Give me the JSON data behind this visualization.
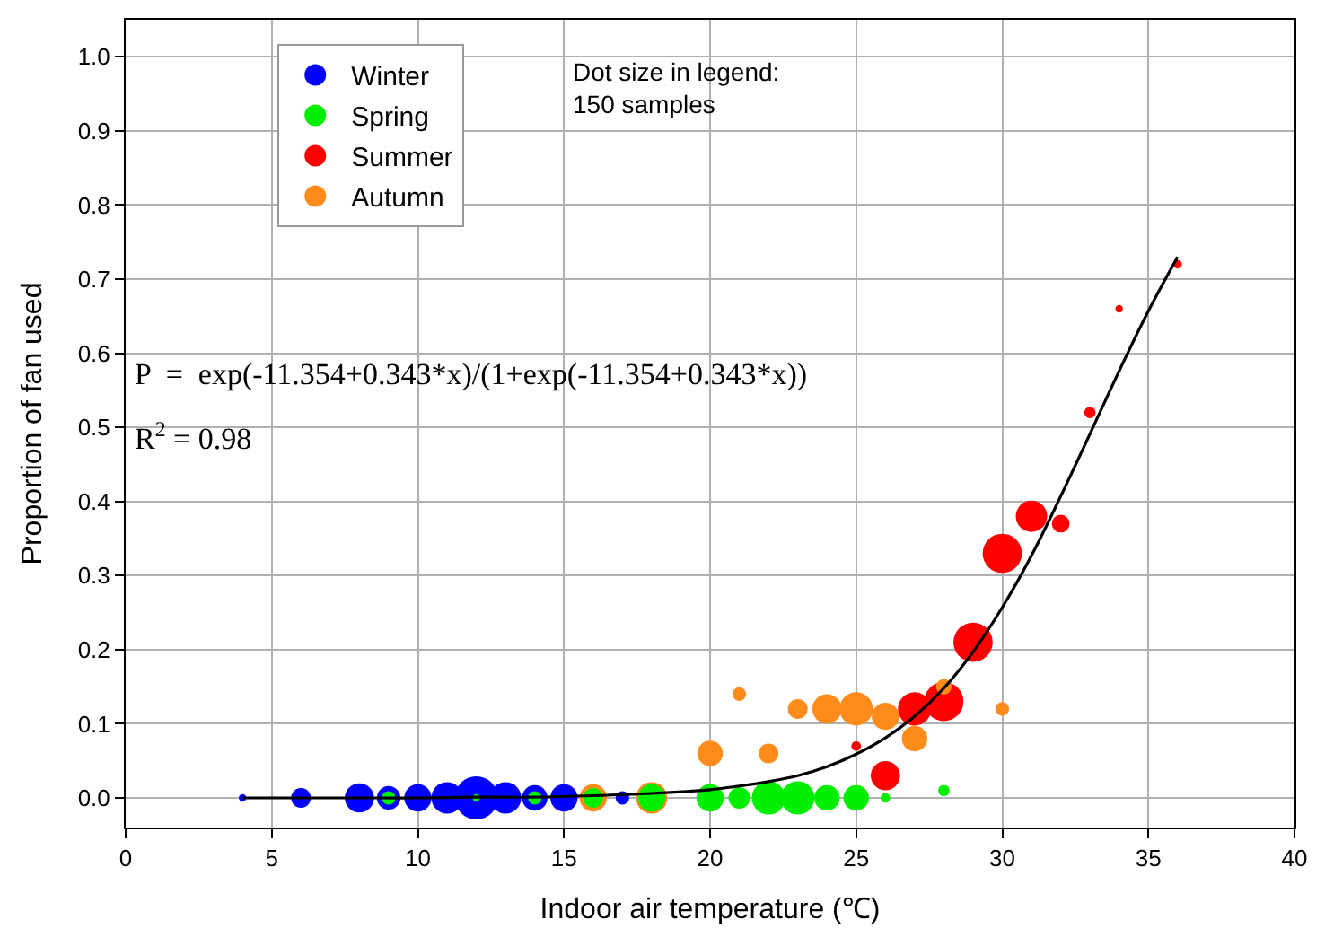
{
  "chart_data": {
    "type": "bubble",
    "xlabel": "Indoor air temperature (℃)",
    "ylabel": "Proportion of fan used",
    "xlim": [
      0,
      40
    ],
    "xticks": [
      0,
      5,
      10,
      15,
      20,
      25,
      30,
      35,
      40
    ],
    "ylim": [
      -0.04,
      1.05
    ],
    "yticks": [
      {
        "value": 0,
        "label": "0.0"
      },
      {
        "value": 0.1,
        "label": "0.1"
      },
      {
        "value": 0.2,
        "label": "0.2"
      },
      {
        "value": 0.3,
        "label": "0.3"
      },
      {
        "value": 0.4,
        "label": "0.4"
      },
      {
        "value": 0.5,
        "label": "0.5"
      },
      {
        "value": 0.6,
        "label": "0.6"
      },
      {
        "value": 0.7,
        "label": "0.7"
      },
      {
        "value": 0.8,
        "label": "0.8"
      },
      {
        "value": 0.9,
        "label": "0.9"
      },
      {
        "value": 1.0,
        "label": "1.0"
      }
    ],
    "grid": true,
    "legend": "top left",
    "marker": "circle",
    "series": [
      {
        "name": "Winter",
        "color": "#0000ff",
        "x": [
          4,
          6,
          8,
          9,
          10,
          11,
          12,
          13,
          14,
          15,
          17
        ],
        "values": [
          0,
          0,
          0,
          0,
          0,
          0,
          0,
          0,
          0,
          0,
          0
        ],
        "sizes": [
          0.03,
          0.21,
          0.46,
          0.3,
          0.4,
          0.53,
          1,
          0.53,
          0.35,
          0.4,
          0.1
        ]
      },
      {
        "name": "Spring",
        "color": "#00ee00",
        "x": [
          9,
          12,
          14,
          16,
          18,
          20,
          21,
          22,
          23,
          24,
          25,
          26,
          28
        ],
        "values": [
          0,
          0,
          0,
          0,
          0,
          0,
          0,
          0,
          0,
          0,
          0,
          0,
          0.01
        ],
        "sizes": [
          0.1,
          0.03,
          0.1,
          0.21,
          0.4,
          0.4,
          0.25,
          0.6,
          0.6,
          0.35,
          0.35,
          0.05,
          0.07
        ]
      },
      {
        "name": "Summer",
        "color": "#ff0000",
        "x": [
          25,
          26,
          27,
          28,
          29,
          30,
          31,
          32,
          33,
          34,
          36
        ],
        "values": [
          0.07,
          0.03,
          0.12,
          0.13,
          0.21,
          0.33,
          0.38,
          0.37,
          0.52,
          0.66,
          0.72
        ],
        "sizes": [
          0.05,
          0.46,
          0.6,
          0.83,
          0.83,
          0.83,
          0.53,
          0.17,
          0.07,
          0.03,
          0.04
        ]
      },
      {
        "name": "Autumn",
        "color": "#ff8c1a",
        "x": [
          16,
          18,
          20,
          21,
          22,
          23,
          24,
          25,
          26,
          27,
          28,
          30
        ],
        "values": [
          0,
          0,
          0.06,
          0.14,
          0.06,
          0.12,
          0.12,
          0.12,
          0.11,
          0.08,
          0.15,
          0.12
        ],
        "sizes": [
          0.4,
          0.53,
          0.35,
          0.1,
          0.21,
          0.21,
          0.46,
          0.6,
          0.4,
          0.35,
          0.13,
          0.1
        ]
      },
      {
        "type": "line",
        "color": "#000000",
        "marker": "none",
        "x": [
          4,
          6,
          8,
          10,
          12,
          14,
          16,
          18,
          20,
          21,
          22,
          23,
          24,
          25,
          26,
          27,
          28,
          29,
          30,
          31,
          32,
          33,
          34,
          35,
          36
        ],
        "values": [
          0.0,
          0.0,
          0.0,
          0.0,
          0.001,
          0.001,
          0.003,
          0.006,
          0.011,
          0.016,
          0.022,
          0.03,
          0.042,
          0.059,
          0.081,
          0.11,
          0.148,
          0.197,
          0.257,
          0.327,
          0.407,
          0.491,
          0.576,
          0.657,
          0.73
        ]
      }
    ],
    "annotations": [
      "P  =  exp(-11.354+0.343*x)/(1+exp(-11.354+0.343*x))",
      "R$^{2}$ = 0.98",
      "Dot size in legend:\n150 samples"
    ]
  }
}
